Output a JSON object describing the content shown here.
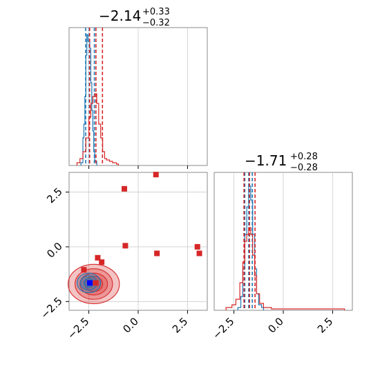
{
  "colors": {
    "blue": "#1f77b4",
    "red": "#d62728",
    "grid": "#cccccc",
    "frame": "#888888"
  },
  "chart_data": [
    {
      "type": "histogram",
      "panel": "top-left",
      "title_main": "−2.14",
      "title_sup": "+0.33",
      "title_sub": "−0.32",
      "xlim": [
        -3.5,
        3.5
      ],
      "x_ticks": [
        -2.5,
        0.0,
        2.5
      ],
      "series": [
        {
          "color": "blue",
          "bins": [
            [
              -2.9,
              0.02
            ],
            [
              -2.8,
              0.2
            ],
            [
              -2.75,
              0.3
            ],
            [
              -2.7,
              0.5
            ],
            [
              -2.65,
              0.8
            ],
            [
              -2.6,
              0.95
            ],
            [
              -2.55,
              0.9
            ],
            [
              -2.5,
              0.9
            ],
            [
              -2.45,
              0.85
            ],
            [
              -2.4,
              0.6
            ],
            [
              -2.35,
              0.4
            ],
            [
              -2.3,
              0.25
            ],
            [
              -2.25,
              0.1
            ],
            [
              -2.2,
              0.03
            ]
          ],
          "quantile_lines": [
            -2.66,
            -2.48,
            -2.22
          ]
        },
        {
          "color": "red",
          "bins": [
            [
              -3.1,
              0.02
            ],
            [
              -2.95,
              0.05
            ],
            [
              -2.8,
              0.1
            ],
            [
              -2.65,
              0.2
            ],
            [
              -2.5,
              0.35
            ],
            [
              -2.4,
              0.45
            ],
            [
              -2.3,
              0.5
            ],
            [
              -2.2,
              0.52
            ],
            [
              -2.1,
              0.45
            ],
            [
              -2.0,
              0.3
            ],
            [
              -1.9,
              0.2
            ],
            [
              -1.8,
              0.1
            ],
            [
              -1.7,
              0.05
            ],
            [
              -1.6,
              0.04
            ],
            [
              -1.45,
              0.03
            ],
            [
              -1.3,
              0.02
            ],
            [
              -1.1,
              0.01
            ]
          ],
          "quantile_lines": [
            -2.46,
            -2.14,
            -1.81
          ]
        }
      ]
    },
    {
      "type": "scatter",
      "panel": "bottom-left",
      "xlim": [
        -3.5,
        3.5
      ],
      "ylim": [
        -2.9,
        3.4
      ],
      "x_ticks": [
        -2.5,
        0.0,
        2.5
      ],
      "y_ticks": [
        -2.5,
        0.0,
        2.5
      ],
      "red_markers": [
        [
          0.9,
          3.3
        ],
        [
          -0.7,
          2.65
        ],
        [
          -0.65,
          0.05
        ],
        [
          0.95,
          -0.3
        ],
        [
          3.0,
          0.0
        ],
        [
          3.1,
          -0.3
        ],
        [
          -2.05,
          -0.5
        ],
        [
          -1.85,
          -0.7
        ],
        [
          -2.75,
          -1.05
        ],
        [
          -2.15,
          -1.65
        ]
      ],
      "blue_marker": [
        -2.45,
        -1.65
      ],
      "contours": [
        {
          "color": "red",
          "center": [
            -2.25,
            -1.7
          ],
          "radii": [
            [
              1.3,
              0.9
            ],
            [
              0.95,
              0.7
            ],
            [
              0.7,
              0.5
            ],
            [
              0.45,
              0.35
            ]
          ]
        },
        {
          "color": "blue",
          "center": [
            -2.5,
            -1.65
          ],
          "radii": [
            [
              0.6,
              0.45
            ],
            [
              0.42,
              0.33
            ],
            [
              0.25,
              0.2
            ]
          ]
        }
      ]
    },
    {
      "type": "histogram",
      "panel": "bottom-right",
      "title_main": "−1.71",
      "title_sup": "+0.28",
      "title_sub": "−0.28",
      "xlim": [
        -3.5,
        3.5
      ],
      "x_ticks": [
        -2.5,
        0.0,
        2.5
      ],
      "series": [
        {
          "color": "blue",
          "bins": [
            [
              -2.3,
              0.02
            ],
            [
              -2.15,
              0.1
            ],
            [
              -2.05,
              0.3
            ],
            [
              -1.95,
              0.55
            ],
            [
              -1.85,
              0.75
            ],
            [
              -1.75,
              0.9
            ],
            [
              -1.65,
              0.8
            ],
            [
              -1.55,
              0.55
            ],
            [
              -1.45,
              0.3
            ],
            [
              -1.35,
              0.12
            ],
            [
              -1.25,
              0.04
            ],
            [
              -1.1,
              0.02
            ]
          ],
          "quantile_lines": [
            -1.95,
            -1.75,
            -1.57
          ]
        },
        {
          "color": "red",
          "bins": [
            [
              -2.9,
              0.02
            ],
            [
              -2.6,
              0.04
            ],
            [
              -2.4,
              0.08
            ],
            [
              -2.2,
              0.2
            ],
            [
              -2.05,
              0.35
            ],
            [
              -1.95,
              0.5
            ],
            [
              -1.85,
              0.55
            ],
            [
              -1.75,
              0.6
            ],
            [
              -1.65,
              0.55
            ],
            [
              -1.55,
              0.4
            ],
            [
              -1.45,
              0.25
            ],
            [
              -1.35,
              0.12
            ],
            [
              -1.2,
              0.05
            ],
            [
              -1.0,
              0.02
            ],
            [
              -0.6,
              0.01
            ],
            [
              0.5,
              0.01
            ],
            [
              1.5,
              0.01
            ],
            [
              3.0,
              0.01
            ]
          ],
          "quantile_lines": [
            -1.99,
            -1.71,
            -1.43
          ]
        }
      ]
    }
  ]
}
